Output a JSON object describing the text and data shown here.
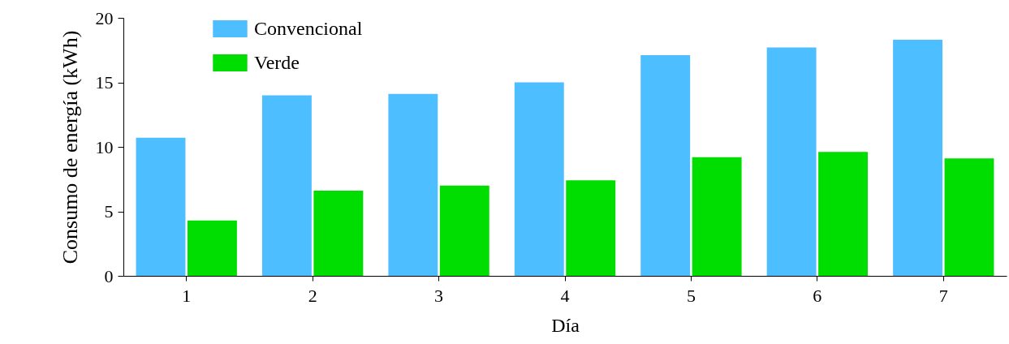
{
  "chart_data": {
    "type": "bar",
    "xlabel": "Día",
    "ylabel": "Consumo de energía (kWh)",
    "categories": [
      "1",
      "2",
      "3",
      "4",
      "5",
      "6",
      "7"
    ],
    "series": [
      {
        "name": "Convencional",
        "color": "#4dbeff",
        "values": [
          10.7,
          14.0,
          14.1,
          15.0,
          17.1,
          17.7,
          18.3
        ]
      },
      {
        "name": "Verde",
        "color": "#00dd00",
        "values": [
          4.3,
          6.6,
          7.0,
          7.4,
          9.2,
          9.6,
          9.1
        ]
      }
    ],
    "ylim": [
      0,
      20
    ],
    "yticks": [
      0,
      5,
      10,
      15,
      20
    ],
    "grid": false,
    "legend": "top left"
  }
}
